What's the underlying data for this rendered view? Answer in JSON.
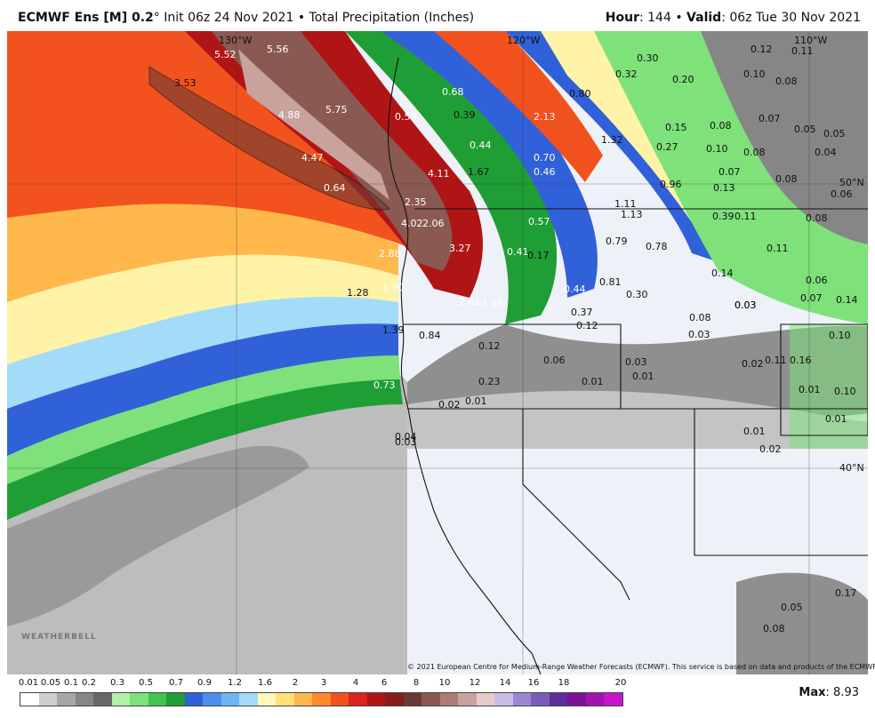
{
  "header": {
    "model": "ECMWF Ens [M] 0.2",
    "degree": "°",
    "init": "Init 06z 24 Nov 2021",
    "bullet": "•",
    "product": "Total Precipitation (Inches)",
    "hour_label": "Hour",
    "hour_value": ": 144",
    "valid_label": "Valid",
    "valid_value": ": 06z Tue 30 Nov 2021"
  },
  "grid_labels": {
    "lon_130": "130°W",
    "lon_120": "120°W",
    "lon_110": "110°W",
    "lat_50": "50°N",
    "lat_40": "40°N"
  },
  "copyright": "© 2021 European Centre for Medium-Range Weather Forecasts (ECMWF). This service is based on data and products of the ECMWF.",
  "watermark": "WEATHERBELL",
  "legend": {
    "ticks": [
      "0.01",
      "0.05",
      "0.1",
      "0.2",
      "0.3",
      "0.5",
      "0.7",
      "0.9",
      "1.2",
      "1.6",
      "2",
      "3",
      "4",
      "6",
      "8",
      "10",
      "12",
      "14",
      "16",
      "18",
      "20"
    ],
    "colors": [
      "#ffffff",
      "#cfcfcf",
      "#a7a7a7",
      "#868686",
      "#686868",
      "#b3f1a7",
      "#7ee17a",
      "#44c44a",
      "#1f9e36",
      "#3161d8",
      "#4d8eea",
      "#6db4f2",
      "#a2dcf8",
      "#fff8ba",
      "#ffe177",
      "#ffb84b",
      "#ff8a2b",
      "#f2521e",
      "#d8241c",
      "#b01515",
      "#8a1b1b",
      "#6a3b35",
      "#8a5a52",
      "#ab7d76",
      "#c8a29c",
      "#e4cbc7",
      "#c9bde8",
      "#9c86cf",
      "#7a5cb8",
      "#5b2f9c",
      "#7a1391",
      "#a212ad",
      "#c716c8"
    ]
  },
  "max": {
    "label": "Max",
    "value": ": 8.93"
  },
  "map_values": [
    {
      "t": "5.52",
      "c": "w"
    },
    {
      "t": "5.56",
      "c": "w"
    },
    {
      "t": "3.53",
      "c": "k"
    },
    {
      "t": "4.88",
      "c": "w"
    },
    {
      "t": "5.75",
      "c": "w"
    },
    {
      "t": "4.47",
      "c": "w"
    },
    {
      "t": "0.64",
      "c": "w"
    },
    {
      "t": "4.11",
      "c": "w"
    },
    {
      "t": "2.35",
      "c": "w"
    },
    {
      "t": "4.02",
      "c": "w"
    },
    {
      "t": "2.06",
      "c": "w"
    },
    {
      "t": "2.88",
      "c": "w"
    },
    {
      "t": "3.27",
      "c": "w"
    },
    {
      "t": "1.28",
      "c": "k"
    },
    {
      "t": "1.90",
      "c": "w"
    },
    {
      "t": "2.41",
      "c": "w"
    },
    {
      "t": "1.10",
      "c": "w"
    },
    {
      "t": "1.39",
      "c": "k"
    },
    {
      "t": "0.84",
      "c": "k"
    },
    {
      "t": "0.73",
      "c": "w"
    },
    {
      "t": "0.68",
      "c": "w"
    },
    {
      "t": "0.59",
      "c": "w"
    },
    {
      "t": "0.39",
      "c": "k"
    },
    {
      "t": "0.44",
      "c": "w"
    },
    {
      "t": "1.67",
      "c": "k"
    },
    {
      "t": "2.13",
      "c": "w"
    },
    {
      "t": "0.70",
      "c": "w"
    },
    {
      "t": "0.46",
      "c": "w"
    },
    {
      "t": "0.80",
      "c": "k"
    },
    {
      "t": "1.32",
      "c": "k"
    },
    {
      "t": "0.57",
      "c": "w"
    },
    {
      "t": "0.41",
      "c": "w"
    },
    {
      "t": "0.17",
      "c": "k"
    },
    {
      "t": "0.44",
      "c": "w"
    },
    {
      "t": "0.37",
      "c": "k"
    },
    {
      "t": "0.12",
      "c": "k"
    },
    {
      "t": "0.81",
      "c": "k"
    },
    {
      "t": "0.30",
      "c": "k"
    },
    {
      "t": "1.11",
      "c": "k"
    },
    {
      "t": "1.13",
      "c": "k"
    },
    {
      "t": "0.79",
      "c": "k"
    },
    {
      "t": "0.78",
      "c": "k"
    },
    {
      "t": "0.96",
      "c": "k"
    },
    {
      "t": "0.27",
      "c": "k"
    },
    {
      "t": "0.30",
      "c": "k"
    },
    {
      "t": "0.32",
      "c": "k"
    },
    {
      "t": "0.20",
      "c": "k"
    },
    {
      "t": "0.15",
      "c": "k"
    },
    {
      "t": "0.10",
      "c": "k"
    },
    {
      "t": "0.13",
      "c": "k"
    },
    {
      "t": "0.39",
      "c": "k"
    },
    {
      "t": "0.11",
      "c": "k"
    },
    {
      "t": "0.14",
      "c": "k"
    },
    {
      "t": "0.08",
      "c": "k"
    },
    {
      "t": "0.03",
      "c": "k"
    },
    {
      "t": "0.12",
      "c": "k"
    },
    {
      "t": "0.23",
      "c": "k"
    },
    {
      "t": "0.06",
      "c": "k"
    },
    {
      "t": "0.03",
      "c": "k"
    },
    {
      "t": "0.01",
      "c": "k"
    },
    {
      "t": "0.01",
      "c": "k"
    },
    {
      "t": "0.02",
      "c": "k"
    },
    {
      "t": "0.01",
      "c": "k"
    },
    {
      "t": "0.04",
      "c": "k"
    },
    {
      "t": "0.03",
      "c": "k"
    },
    {
      "t": "0.12",
      "c": "k"
    },
    {
      "t": "0.11",
      "c": "k"
    },
    {
      "t": "0.10",
      "c": "k"
    },
    {
      "t": "0.08",
      "c": "k"
    },
    {
      "t": "0.07",
      "c": "k"
    },
    {
      "t": "0.05",
      "c": "k"
    },
    {
      "t": "0.05",
      "c": "k"
    },
    {
      "t": "0.04",
      "c": "k"
    },
    {
      "t": "0.08",
      "c": "k"
    },
    {
      "t": "0.08",
      "c": "k"
    },
    {
      "t": "0.07",
      "c": "k"
    },
    {
      "t": "0.08",
      "c": "k"
    },
    {
      "t": "0.06",
      "c": "k"
    },
    {
      "t": "0.08",
      "c": "k"
    },
    {
      "t": "0.11",
      "c": "k"
    },
    {
      "t": "0.06",
      "c": "k"
    },
    {
      "t": "0.07",
      "c": "k"
    },
    {
      "t": "0.14",
      "c": "k"
    },
    {
      "t": "0.03",
      "c": "k"
    },
    {
      "t": "0.03",
      "c": "k"
    },
    {
      "t": "0.02",
      "c": "k"
    },
    {
      "t": "0.11",
      "c": "k"
    },
    {
      "t": "0.16",
      "c": "k"
    },
    {
      "t": "0.10",
      "c": "k"
    },
    {
      "t": "0.01",
      "c": "k"
    },
    {
      "t": "0.10",
      "c": "k"
    },
    {
      "t": "0.01",
      "c": "k"
    },
    {
      "t": "0.01",
      "c": "k"
    },
    {
      "t": "0.02",
      "c": "k"
    },
    {
      "t": "0.17",
      "c": "k"
    },
    {
      "t": "0.05",
      "c": "k"
    },
    {
      "t": "0.08",
      "c": "k"
    }
  ]
}
